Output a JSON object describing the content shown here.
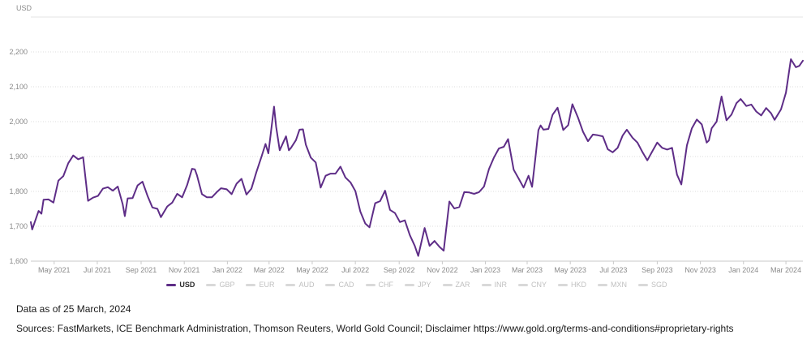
{
  "chart": {
    "unit_label": "USD"
  },
  "footer": {
    "data_as_of": "Data as of 25 March, 2024",
    "sources": "Sources: FastMarkets, ICE Benchmark Administration, Thomson Reuters, World Gold Council; Disclaimer https://www.gold.org/terms-and-conditions#proprietary-rights"
  },
  "colors": {
    "line": "#5e2d87",
    "grid": "#dedede",
    "frame": "#e3e3e3",
    "axis_line": "#c9c9c9",
    "tick_mark": "#c9c9c9",
    "axis_text": "#8a8a8a",
    "legend_inactive_swatch": "#d9d9d9",
    "legend_inactive_text": "#bfbfbf",
    "legend_active_text": "#2b2b2b"
  },
  "legend": {
    "items": [
      {
        "label": "USD",
        "active": true
      },
      {
        "label": "GBP",
        "active": false
      },
      {
        "label": "EUR",
        "active": false
      },
      {
        "label": "AUD",
        "active": false
      },
      {
        "label": "CAD",
        "active": false
      },
      {
        "label": "CHF",
        "active": false
      },
      {
        "label": "JPY",
        "active": false
      },
      {
        "label": "ZAR",
        "active": false
      },
      {
        "label": "INR",
        "active": false
      },
      {
        "label": "CNY",
        "active": false
      },
      {
        "label": "HKD",
        "active": false
      },
      {
        "label": "MXN",
        "active": false
      },
      {
        "label": "SGD",
        "active": false
      }
    ]
  },
  "chart_data": {
    "type": "line",
    "title": "",
    "unit": "USD",
    "ylim": [
      1600,
      2300
    ],
    "grid": true,
    "legend_position": "bottom",
    "y_ticks": [
      {
        "value": 2200,
        "label": "2,200"
      },
      {
        "value": 2100,
        "label": "2,100"
      },
      {
        "value": 2000,
        "label": "2,000"
      },
      {
        "value": 1900,
        "label": "1,900"
      },
      {
        "value": 1800,
        "label": "1,800"
      },
      {
        "value": 1700,
        "label": "1,700"
      },
      {
        "value": 1600,
        "label": "1,600"
      }
    ],
    "x_range": [
      "2021-03-29",
      "2024-03-25"
    ],
    "x_ticks": [
      {
        "date": "2021-05-01",
        "label": "May 2021"
      },
      {
        "date": "2021-07-01",
        "label": "Jul 2021"
      },
      {
        "date": "2021-09-01",
        "label": "Sep 2021"
      },
      {
        "date": "2021-11-01",
        "label": "Nov 2021"
      },
      {
        "date": "2022-01-01",
        "label": "Jan 2022"
      },
      {
        "date": "2022-03-01",
        "label": "Mar 2022"
      },
      {
        "date": "2022-05-01",
        "label": "May 2022"
      },
      {
        "date": "2022-07-01",
        "label": "Jul 2022"
      },
      {
        "date": "2022-09-01",
        "label": "Sep 2022"
      },
      {
        "date": "2022-11-01",
        "label": "Nov 2022"
      },
      {
        "date": "2023-01-01",
        "label": "Jan 2023"
      },
      {
        "date": "2023-03-01",
        "label": "Mar 2023"
      },
      {
        "date": "2023-05-01",
        "label": "May 2023"
      },
      {
        "date": "2023-07-01",
        "label": "Jul 2023"
      },
      {
        "date": "2023-09-01",
        "label": "Sep 2023"
      },
      {
        "date": "2023-11-01",
        "label": "Nov 2023"
      },
      {
        "date": "2024-01-01",
        "label": "Jan 2024"
      },
      {
        "date": "2024-03-01",
        "label": "Mar 2024"
      }
    ],
    "inactive_series": [
      "GBP",
      "EUR",
      "AUD",
      "CAD",
      "CHF",
      "JPY",
      "ZAR",
      "INR",
      "CNY",
      "HKD",
      "MXN",
      "SGD"
    ],
    "series": [
      {
        "name": "USD",
        "points": [
          [
            "2021-03-29",
            1712
          ],
          [
            "2021-03-31",
            1691
          ],
          [
            "2021-04-09",
            1744
          ],
          [
            "2021-04-13",
            1736
          ],
          [
            "2021-04-16",
            1776
          ],
          [
            "2021-04-23",
            1777
          ],
          [
            "2021-04-30",
            1768
          ],
          [
            "2021-05-07",
            1831
          ],
          [
            "2021-05-14",
            1844
          ],
          [
            "2021-05-21",
            1881
          ],
          [
            "2021-05-28",
            1903
          ],
          [
            "2021-06-04",
            1892
          ],
          [
            "2021-06-11",
            1898
          ],
          [
            "2021-06-18",
            1773
          ],
          [
            "2021-06-25",
            1782
          ],
          [
            "2021-07-02",
            1787
          ],
          [
            "2021-07-09",
            1808
          ],
          [
            "2021-07-16",
            1812
          ],
          [
            "2021-07-23",
            1802
          ],
          [
            "2021-07-30",
            1814
          ],
          [
            "2021-08-06",
            1763
          ],
          [
            "2021-08-09",
            1729
          ],
          [
            "2021-08-13",
            1780
          ],
          [
            "2021-08-20",
            1781
          ],
          [
            "2021-08-27",
            1817
          ],
          [
            "2021-09-03",
            1828
          ],
          [
            "2021-09-10",
            1788
          ],
          [
            "2021-09-17",
            1754
          ],
          [
            "2021-09-24",
            1750
          ],
          [
            "2021-09-29",
            1726
          ],
          [
            "2021-10-08",
            1757
          ],
          [
            "2021-10-15",
            1768
          ],
          [
            "2021-10-22",
            1793
          ],
          [
            "2021-10-29",
            1783
          ],
          [
            "2021-11-05",
            1818
          ],
          [
            "2021-11-12",
            1865
          ],
          [
            "2021-11-16",
            1863
          ],
          [
            "2021-11-19",
            1846
          ],
          [
            "2021-11-26",
            1792
          ],
          [
            "2021-12-03",
            1783
          ],
          [
            "2021-12-10",
            1783
          ],
          [
            "2021-12-17",
            1798
          ],
          [
            "2021-12-23",
            1809
          ],
          [
            "2021-12-31",
            1806
          ],
          [
            "2022-01-07",
            1792
          ],
          [
            "2022-01-14",
            1822
          ],
          [
            "2022-01-21",
            1836
          ],
          [
            "2022-01-28",
            1791
          ],
          [
            "2022-02-04",
            1808
          ],
          [
            "2022-02-11",
            1855
          ],
          [
            "2022-02-18",
            1898
          ],
          [
            "2022-02-24",
            1936
          ],
          [
            "2022-02-28",
            1909
          ],
          [
            "2022-03-08",
            2043
          ],
          [
            "2022-03-11",
            1985
          ],
          [
            "2022-03-16",
            1918
          ],
          [
            "2022-03-22",
            1945
          ],
          [
            "2022-03-25",
            1958
          ],
          [
            "2022-03-29",
            1918
          ],
          [
            "2022-04-01",
            1925
          ],
          [
            "2022-04-08",
            1947
          ],
          [
            "2022-04-13",
            1977
          ],
          [
            "2022-04-18",
            1978
          ],
          [
            "2022-04-22",
            1934
          ],
          [
            "2022-04-29",
            1897
          ],
          [
            "2022-05-06",
            1883
          ],
          [
            "2022-05-13",
            1811
          ],
          [
            "2022-05-20",
            1845
          ],
          [
            "2022-05-27",
            1851
          ],
          [
            "2022-06-03",
            1851
          ],
          [
            "2022-06-10",
            1871
          ],
          [
            "2022-06-17",
            1840
          ],
          [
            "2022-06-24",
            1826
          ],
          [
            "2022-07-01",
            1801
          ],
          [
            "2022-07-08",
            1742
          ],
          [
            "2022-07-15",
            1708
          ],
          [
            "2022-07-21",
            1697
          ],
          [
            "2022-07-29",
            1766
          ],
          [
            "2022-08-05",
            1772
          ],
          [
            "2022-08-12",
            1802
          ],
          [
            "2022-08-19",
            1747
          ],
          [
            "2022-08-26",
            1738
          ],
          [
            "2022-09-02",
            1712
          ],
          [
            "2022-09-09",
            1717
          ],
          [
            "2022-09-16",
            1675
          ],
          [
            "2022-09-23",
            1644
          ],
          [
            "2022-09-28",
            1615
          ],
          [
            "2022-10-07",
            1695
          ],
          [
            "2022-10-14",
            1644
          ],
          [
            "2022-10-21",
            1658
          ],
          [
            "2022-10-28",
            1641
          ],
          [
            "2022-11-03",
            1630
          ],
          [
            "2022-11-11",
            1771
          ],
          [
            "2022-11-18",
            1751
          ],
          [
            "2022-11-25",
            1755
          ],
          [
            "2022-12-02",
            1798
          ],
          [
            "2022-12-09",
            1797
          ],
          [
            "2022-12-16",
            1793
          ],
          [
            "2022-12-23",
            1798
          ],
          [
            "2022-12-30",
            1814
          ],
          [
            "2023-01-06",
            1864
          ],
          [
            "2023-01-13",
            1897
          ],
          [
            "2023-01-20",
            1923
          ],
          [
            "2023-01-27",
            1928
          ],
          [
            "2023-02-02",
            1950
          ],
          [
            "2023-02-10",
            1862
          ],
          [
            "2023-02-17",
            1837
          ],
          [
            "2023-02-24",
            1811
          ],
          [
            "2023-03-03",
            1845
          ],
          [
            "2023-03-08",
            1813
          ],
          [
            "2023-03-13",
            1903
          ],
          [
            "2023-03-17",
            1976
          ],
          [
            "2023-03-20",
            1989
          ],
          [
            "2023-03-24",
            1977
          ],
          [
            "2023-03-31",
            1979
          ],
          [
            "2023-04-06",
            2020
          ],
          [
            "2023-04-13",
            2040
          ],
          [
            "2023-04-21",
            1976
          ],
          [
            "2023-04-28",
            1990
          ],
          [
            "2023-05-04",
            2050
          ],
          [
            "2023-05-12",
            2011
          ],
          [
            "2023-05-19",
            1971
          ],
          [
            "2023-05-26",
            1944
          ],
          [
            "2023-06-02",
            1963
          ],
          [
            "2023-06-09",
            1961
          ],
          [
            "2023-06-16",
            1958
          ],
          [
            "2023-06-23",
            1921
          ],
          [
            "2023-06-30",
            1912
          ],
          [
            "2023-07-07",
            1925
          ],
          [
            "2023-07-14",
            1960
          ],
          [
            "2023-07-20",
            1977
          ],
          [
            "2023-07-28",
            1954
          ],
          [
            "2023-08-04",
            1940
          ],
          [
            "2023-08-11",
            1913
          ],
          [
            "2023-08-18",
            1889
          ],
          [
            "2023-08-25",
            1915
          ],
          [
            "2023-09-01",
            1940
          ],
          [
            "2023-09-08",
            1925
          ],
          [
            "2023-09-15",
            1920
          ],
          [
            "2023-09-22",
            1925
          ],
          [
            "2023-09-29",
            1848
          ],
          [
            "2023-10-05",
            1820
          ],
          [
            "2023-10-13",
            1932
          ],
          [
            "2023-10-20",
            1981
          ],
          [
            "2023-10-27",
            2006
          ],
          [
            "2023-11-03",
            1992
          ],
          [
            "2023-11-10",
            1940
          ],
          [
            "2023-11-13",
            1946
          ],
          [
            "2023-11-17",
            1981
          ],
          [
            "2023-11-24",
            2000
          ],
          [
            "2023-12-01",
            2072
          ],
          [
            "2023-12-08",
            2004
          ],
          [
            "2023-12-15",
            2020
          ],
          [
            "2023-12-22",
            2053
          ],
          [
            "2023-12-28",
            2065
          ],
          [
            "2024-01-05",
            2045
          ],
          [
            "2024-01-12",
            2049
          ],
          [
            "2024-01-19",
            2029
          ],
          [
            "2024-01-26",
            2018
          ],
          [
            "2024-02-02",
            2039
          ],
          [
            "2024-02-09",
            2024
          ],
          [
            "2024-02-14",
            2005
          ],
          [
            "2024-02-23",
            2035
          ],
          [
            "2024-03-01",
            2083
          ],
          [
            "2024-03-08",
            2179
          ],
          [
            "2024-03-15",
            2156
          ],
          [
            "2024-03-20",
            2160
          ],
          [
            "2024-03-25",
            2175
          ]
        ]
      }
    ]
  }
}
